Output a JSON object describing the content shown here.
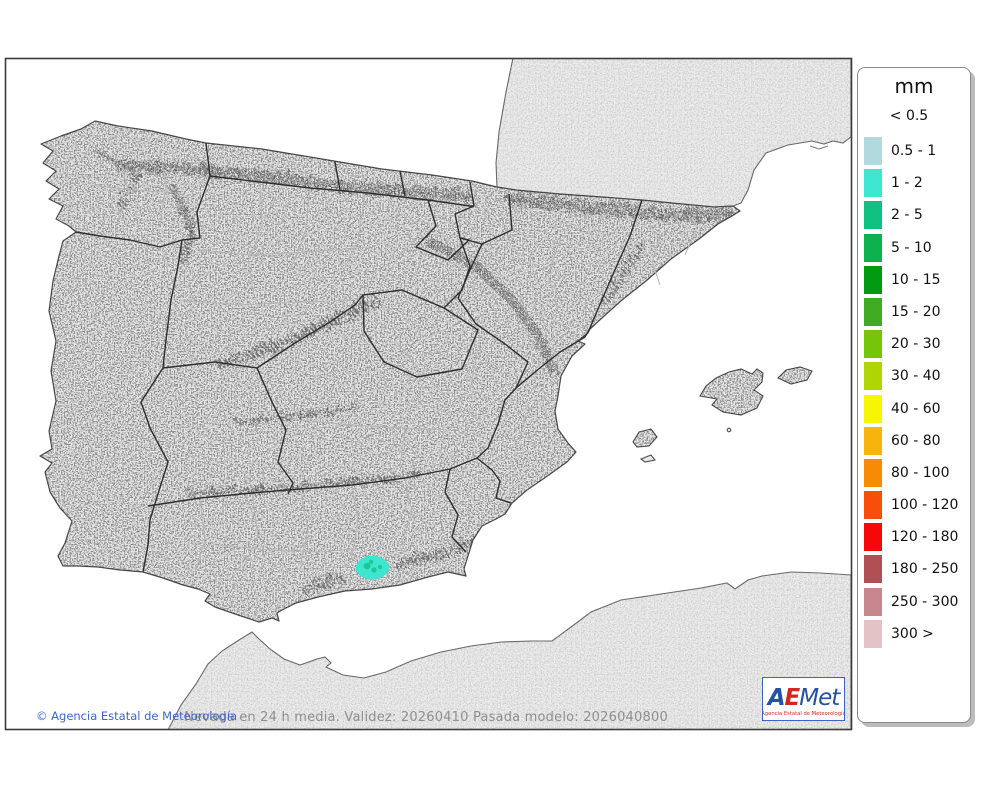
{
  "map": {
    "frame_color": "#3c3c3c",
    "sea_color": "#ffffff",
    "land_color": "#e8e8e8",
    "neighbor_land_color": "#ececec",
    "community_border_color": "#2e2e2e",
    "province_border_color": "#b5b5b5",
    "coast_color": "#4d4d4d",
    "snow_patch": {
      "color": "#3ee6cf",
      "inner_color": "#10c080"
    }
  },
  "legend": {
    "title": "mm",
    "no_color_label": "< 0.5",
    "entries": [
      {
        "label": "0.5 - 1",
        "color": "#b2dade"
      },
      {
        "label": "1 - 2",
        "color": "#3ee6cf"
      },
      {
        "label": "2 - 5",
        "color": "#10c080"
      },
      {
        "label": "5 - 10",
        "color": "#0db14d"
      },
      {
        "label": "10 - 15",
        "color": "#029a12"
      },
      {
        "label": "15 - 20",
        "color": "#41ab24"
      },
      {
        "label": "20 - 30",
        "color": "#76c50b"
      },
      {
        "label": "30 - 40",
        "color": "#b0d505"
      },
      {
        "label": "40 - 60",
        "color": "#f7f503"
      },
      {
        "label": "60 - 80",
        "color": "#f7b40c"
      },
      {
        "label": "80 - 100",
        "color": "#f78b07"
      },
      {
        "label": "100 - 120",
        "color": "#f74e09"
      },
      {
        "label": "120 - 180",
        "color": "#f70808"
      },
      {
        "label": "180 - 250",
        "color": "#b24f55"
      },
      {
        "label": "250 - 300",
        "color": "#c8868d"
      },
      {
        "label": "300 >",
        "color": "#e3c3c6"
      }
    ]
  },
  "footer": {
    "caption": "Nevada en 24 h media. Validez: 20260410 Pasada modelo: 2026040800",
    "copyright": "© Agencia Estatal de Meteorología"
  },
  "logo": {
    "text_a": "A",
    "text_e": "E",
    "text_met": "Met",
    "caption": "Agencia Estatal de Meteorología"
  }
}
